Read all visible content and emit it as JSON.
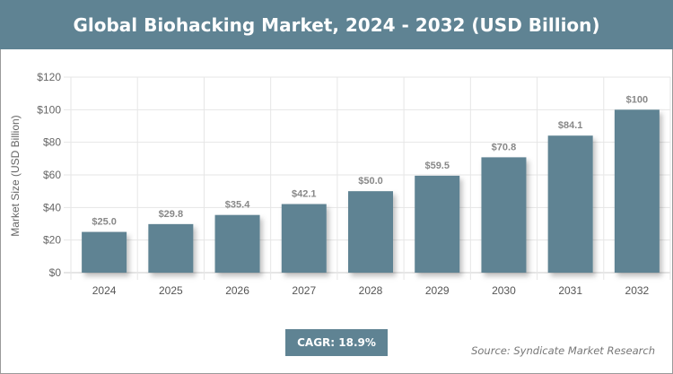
{
  "chart_data": {
    "type": "bar",
    "title": "Global Biohacking Market, 2024 - 2032 (USD Billion)",
    "xlabel": "",
    "ylabel": "Market Size (USD Billion)",
    "categories": [
      "2024",
      "2025",
      "2026",
      "2027",
      "2028",
      "2029",
      "2030",
      "2031",
      "2032"
    ],
    "values": [
      25.0,
      29.8,
      35.4,
      42.1,
      50.0,
      59.5,
      70.8,
      84.1,
      100
    ],
    "data_labels": [
      "$25.0",
      "$29.8",
      "$35.4",
      "$42.1",
      "$50.0",
      "$59.5",
      "$70.8",
      "$84.1",
      "$100"
    ],
    "ylim": [
      0,
      120
    ],
    "yticks": [
      0,
      20,
      40,
      60,
      80,
      100,
      120
    ],
    "ytick_labels": [
      "$0",
      "$20",
      "$40",
      "$60",
      "$80",
      "$100",
      "$120"
    ],
    "grid": true,
    "bar_color": "#5f8393"
  },
  "annotations": {
    "cagr": "CAGR: 18.9%",
    "source": "Source: Syndicate Market Research"
  }
}
